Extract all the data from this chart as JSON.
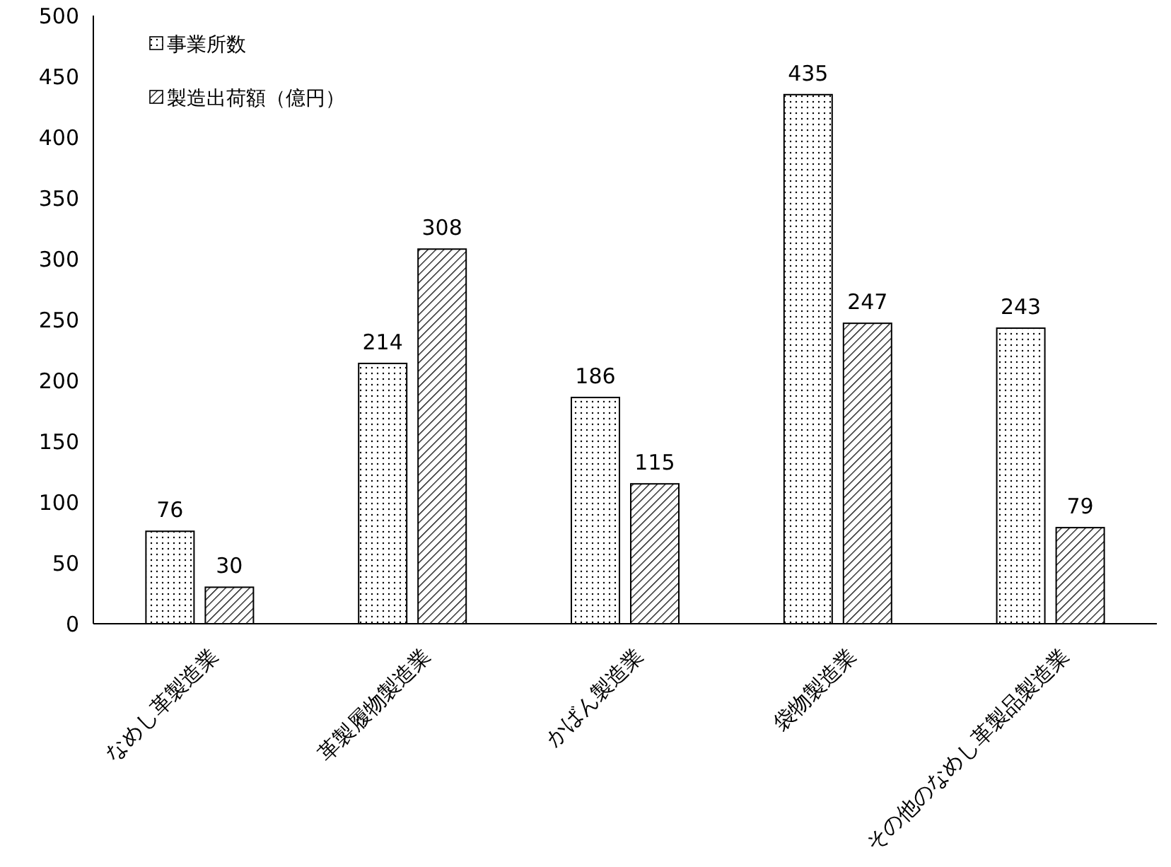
{
  "chart_data": {
    "type": "bar",
    "categories": [
      "なめし革製造業",
      "革製履物製造業",
      "かばん製造業",
      "袋物製造業",
      "その他のなめし革製品製造業"
    ],
    "series": [
      {
        "name": "事業所数",
        "color": "#000000",
        "values": [
          76,
          214,
          186,
          435,
          243
        ]
      },
      {
        "name": "製造出荷額（億円）",
        "color": "#000000",
        "values": [
          30,
          308,
          115,
          247,
          79
        ]
      }
    ],
    "ylim": [
      0,
      500
    ],
    "yticks": [
      0,
      50,
      100,
      150,
      200,
      250,
      300,
      350,
      400,
      450,
      500
    ],
    "grid": false,
    "legend": "top left",
    "data_labels": true
  }
}
